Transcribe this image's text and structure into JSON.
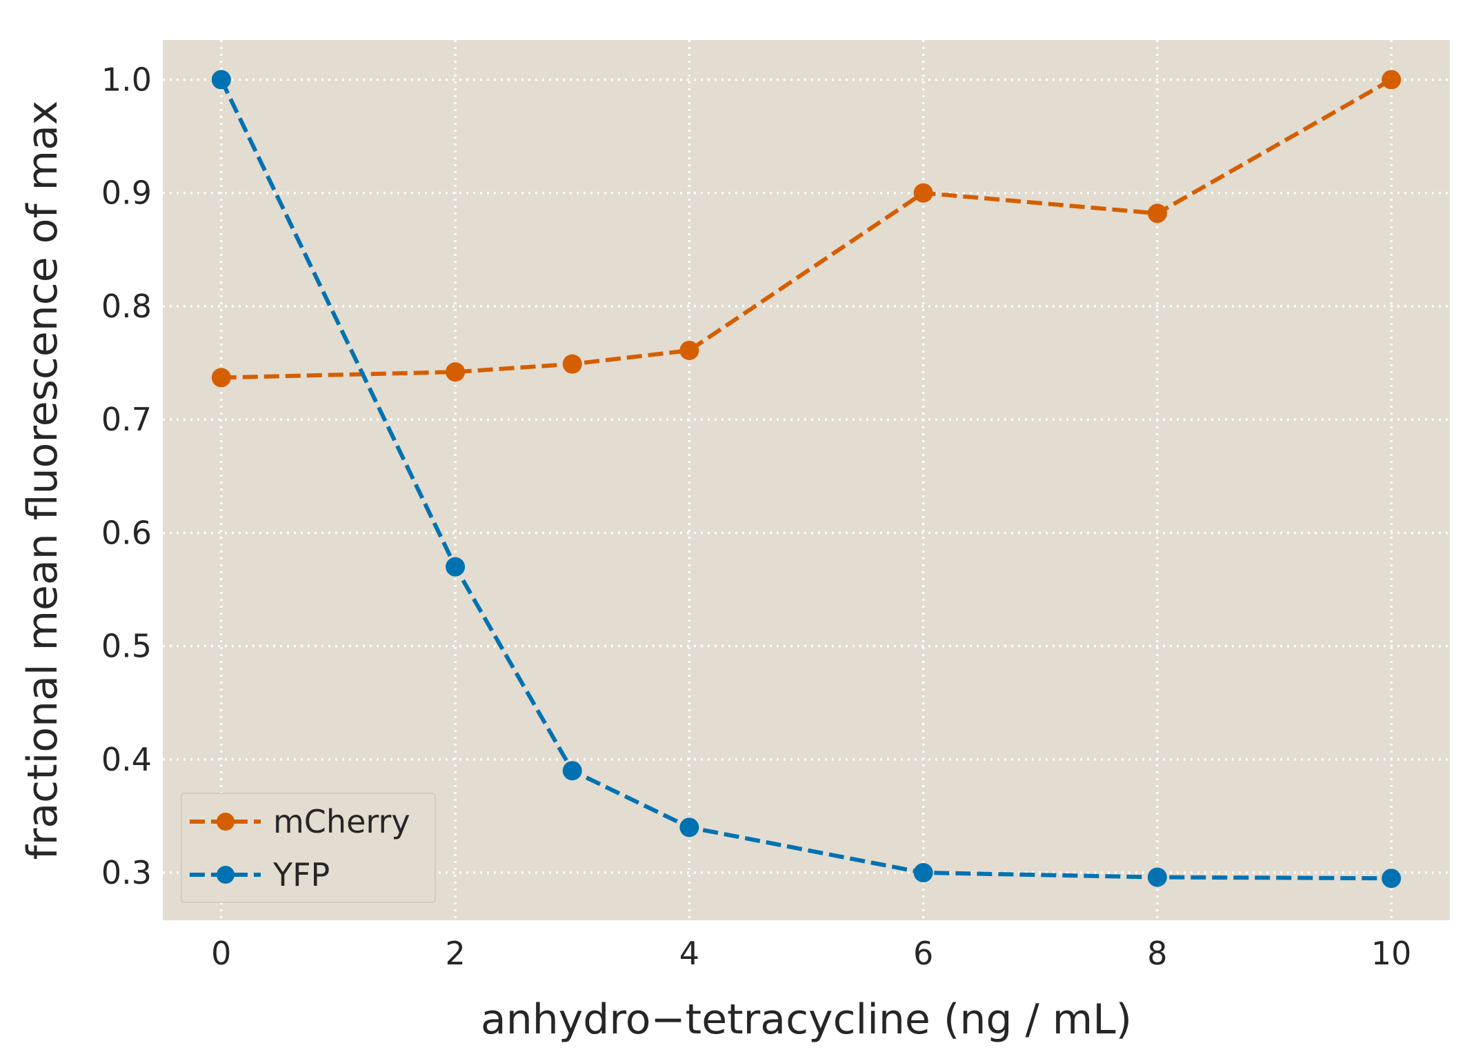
{
  "chart_data": {
    "type": "line",
    "xlabel": "anhydro−tetracycline (ng / mL)",
    "ylabel": "fractional mean fluorescence of max",
    "xlim": [
      -0.5,
      10.5
    ],
    "ylim": [
      0.258,
      1.035
    ],
    "x_ticks": [
      "0",
      "2",
      "4",
      "6",
      "8",
      "10"
    ],
    "y_ticks": [
      "0.3",
      "0.4",
      "0.5",
      "0.6",
      "0.7",
      "0.8",
      "0.9",
      "1.0"
    ],
    "grid": true,
    "legend_position": "lower-left",
    "x": [
      0,
      2,
      3,
      4,
      6,
      8,
      10
    ],
    "series": [
      {
        "name": "mCherry",
        "color": "#d55e00",
        "values": [
          0.737,
          0.742,
          0.749,
          0.761,
          0.9,
          0.882,
          1.0
        ]
      },
      {
        "name": "YFP",
        "color": "#0072b2",
        "values": [
          1.0,
          0.57,
          0.39,
          0.34,
          0.3,
          0.296,
          0.295
        ]
      }
    ],
    "colors": {
      "plot_background": "#e3dcd0",
      "grid": "#ffffff",
      "text": "#262626"
    }
  }
}
